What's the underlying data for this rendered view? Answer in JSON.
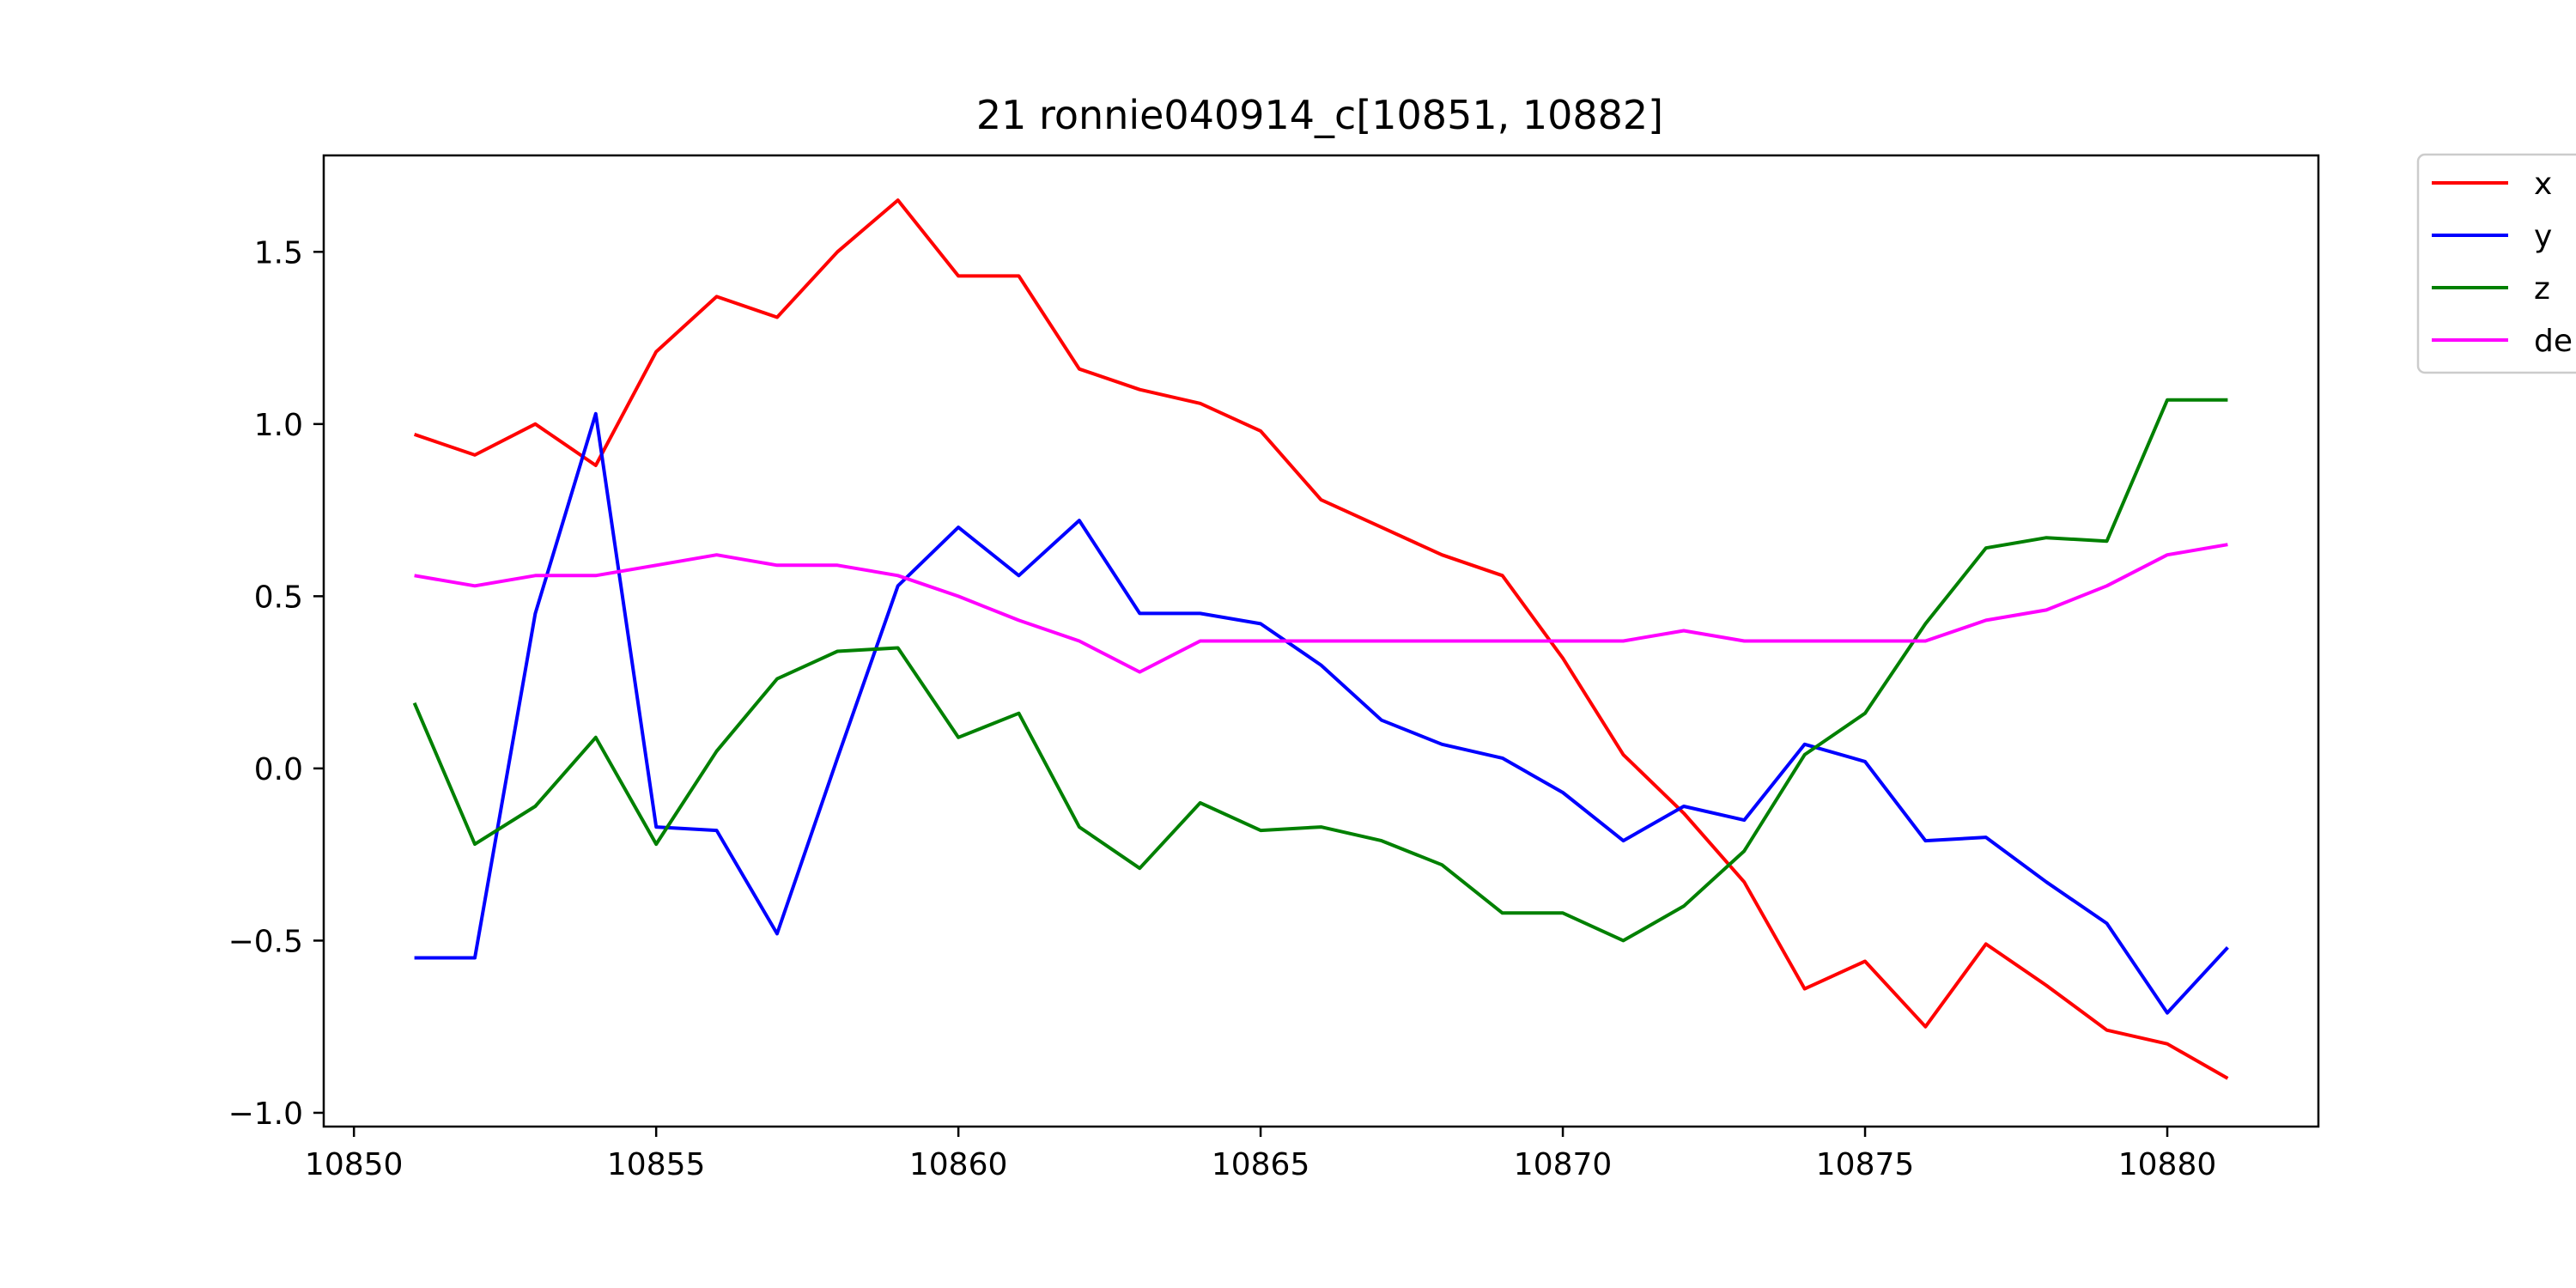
{
  "chart_data": {
    "type": "line",
    "title": "21 ronnie040914_c[10851, 10882]",
    "xlabel": "",
    "ylabel": "",
    "xlim": [
      10849.5,
      10882.5
    ],
    "ylim": [
      -1.04,
      1.78
    ],
    "x_ticks": [
      10850,
      10855,
      10860,
      10865,
      10870,
      10875,
      10880
    ],
    "y_ticks": [
      1.5,
      1.0,
      0.5,
      0.0,
      -0.5,
      -1.0
    ],
    "x_tick_labels": [
      "10850",
      "10855",
      "10860",
      "10865",
      "10870",
      "10875",
      "10880"
    ],
    "y_tick_labels": [
      "1.5",
      "1.0",
      "0.5",
      "0.0",
      "−0.5",
      "−1.0"
    ],
    "grid": false,
    "legend_position": "outside-top-right",
    "x": [
      10851,
      10852,
      10853,
      10854,
      10855,
      10856,
      10857,
      10858,
      10859,
      10860,
      10861,
      10862,
      10863,
      10864,
      10865,
      10866,
      10867,
      10868,
      10869,
      10870,
      10871,
      10872,
      10873,
      10874,
      10875,
      10876,
      10877,
      10878,
      10879,
      10880,
      10881
    ],
    "series": [
      {
        "name": "x",
        "color": "#ff0000",
        "values": [
          0.97,
          0.91,
          1.0,
          0.88,
          1.21,
          1.37,
          1.31,
          1.5,
          1.65,
          1.43,
          1.43,
          1.16,
          1.1,
          1.06,
          0.98,
          0.78,
          0.7,
          0.62,
          0.56,
          0.32,
          0.04,
          -0.13,
          -0.33,
          -0.64,
          -0.56,
          -0.75,
          -0.51,
          -0.63,
          -0.76,
          -0.8,
          -0.9
        ]
      },
      {
        "name": "y",
        "color": "#0000ff",
        "values": [
          -0.55,
          -0.55,
          0.45,
          1.03,
          -0.17,
          -0.18,
          -0.48,
          0.03,
          0.53,
          0.7,
          0.56,
          0.72,
          0.45,
          0.45,
          0.42,
          0.3,
          0.14,
          0.07,
          0.03,
          -0.07,
          -0.21,
          -0.11,
          -0.15,
          0.07,
          0.02,
          -0.21,
          -0.2,
          -0.33,
          -0.45,
          -0.71,
          -0.52
        ]
      },
      {
        "name": "z",
        "color": "#008000",
        "values": [
          0.19,
          -0.22,
          -0.11,
          0.09,
          -0.22,
          0.05,
          0.26,
          0.34,
          0.35,
          0.09,
          0.16,
          -0.17,
          -0.29,
          -0.1,
          -0.18,
          -0.17,
          -0.21,
          -0.28,
          -0.42,
          -0.42,
          -0.5,
          -0.4,
          -0.24,
          0.04,
          0.16,
          0.42,
          0.64,
          0.67,
          0.66,
          1.07,
          1.07
        ]
      },
      {
        "name": "de",
        "color": "#ff00ff",
        "values": [
          0.56,
          0.53,
          0.56,
          0.56,
          0.59,
          0.62,
          0.59,
          0.59,
          0.56,
          0.5,
          0.43,
          0.37,
          0.28,
          0.37,
          0.37,
          0.37,
          0.37,
          0.37,
          0.37,
          0.37,
          0.37,
          0.4,
          0.37,
          0.37,
          0.37,
          0.37,
          0.43,
          0.46,
          0.53,
          0.62,
          0.65
        ]
      }
    ]
  }
}
